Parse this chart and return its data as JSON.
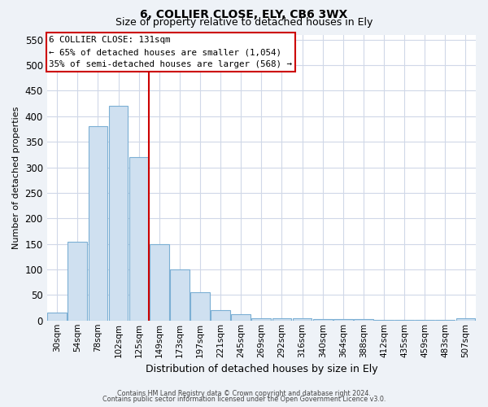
{
  "title": "6, COLLIER CLOSE, ELY, CB6 3WX",
  "subtitle": "Size of property relative to detached houses in Ely",
  "xlabel": "Distribution of detached houses by size in Ely",
  "ylabel": "Number of detached properties",
  "bin_labels": [
    "30sqm",
    "54sqm",
    "78sqm",
    "102sqm",
    "125sqm",
    "149sqm",
    "173sqm",
    "197sqm",
    "221sqm",
    "245sqm",
    "269sqm",
    "292sqm",
    "316sqm",
    "340sqm",
    "364sqm",
    "388sqm",
    "412sqm",
    "435sqm",
    "459sqm",
    "483sqm",
    "507sqm"
  ],
  "bin_values": [
    15,
    155,
    380,
    420,
    320,
    150,
    100,
    55,
    20,
    12,
    5,
    5,
    5,
    3,
    3,
    3,
    2,
    2,
    2,
    2,
    5
  ],
  "bar_color": "#cfe0f0",
  "bar_edge_color": "#7bafd4",
  "red_line_bin": 5,
  "red_line_color": "#cc0000",
  "ylim": [
    0,
    560
  ],
  "yticks": [
    0,
    50,
    100,
    150,
    200,
    250,
    300,
    350,
    400,
    450,
    500,
    550
  ],
  "annotation_title": "6 COLLIER CLOSE: 131sqm",
  "annotation_line1": "← 65% of detached houses are smaller (1,054)",
  "annotation_line2": "35% of semi-detached houses are larger (568) →",
  "annotation_box_color": "#ffffff",
  "annotation_box_edge_color": "#cc0000",
  "footer_line1": "Contains HM Land Registry data © Crown copyright and database right 2024.",
  "footer_line2": "Contains public sector information licensed under the Open Government Licence v3.0.",
  "plot_bg_color": "#ffffff",
  "fig_bg_color": "#eef2f7",
  "grid_color": "#d0d8e8",
  "title_fontsize": 10,
  "subtitle_fontsize": 9
}
